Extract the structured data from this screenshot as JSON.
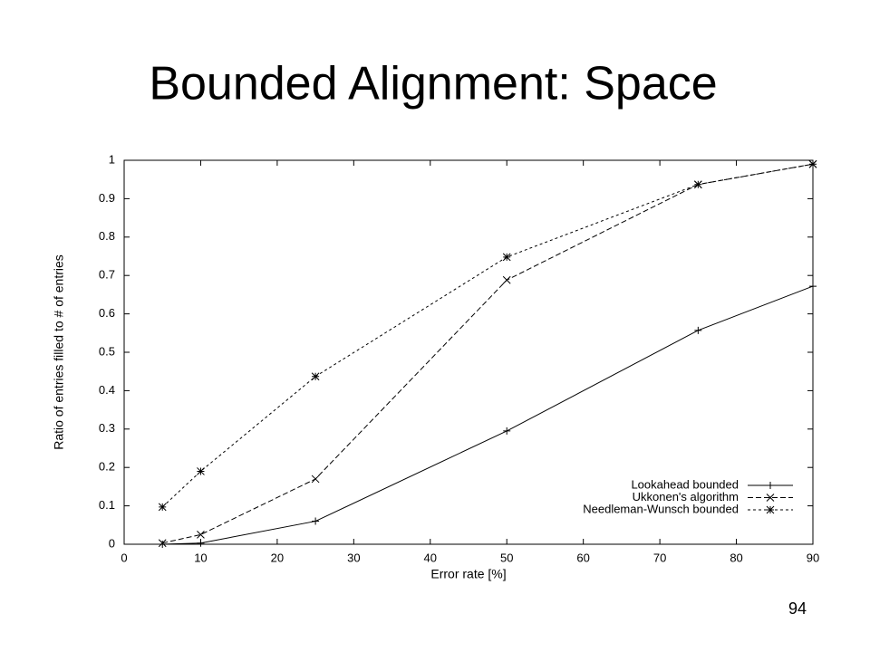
{
  "chart_data": {
    "type": "line",
    "title": "Bounded Alignment: Space",
    "x_label": "Error rate [%]",
    "y_label": "Ratio of entries filled to # of entries",
    "x": [
      5,
      10,
      25,
      50,
      75,
      90
    ],
    "series": [
      {
        "name": "Lookahead bounded",
        "color": "#000000",
        "marker": "plus",
        "dash": "solid",
        "values": [
          0,
          0.003,
          0.06,
          0.295,
          0.557,
          0.672
        ]
      },
      {
        "name": "Ukkonen's algorithm",
        "color": "#000000",
        "marker": "cross",
        "dash": "dashed",
        "values": [
          0.003,
          0.025,
          0.17,
          0.688,
          0.937,
          0.99
        ]
      },
      {
        "name": "Needleman-Wunsch bounded",
        "color": "#000000",
        "marker": "star",
        "dash": "dotted",
        "values": [
          0.097,
          0.19,
          0.437,
          0.748,
          0.937,
          0.99
        ]
      }
    ],
    "xlim": [
      0,
      90
    ],
    "xticks": [
      0,
      10,
      20,
      30,
      40,
      50,
      60,
      70,
      80,
      90
    ],
    "ylim": [
      0,
      1
    ],
    "yticks": [
      0,
      0.1,
      0.2,
      0.3,
      0.4,
      0.5,
      0.6,
      0.7,
      0.8,
      0.9,
      1
    ],
    "legend": "lower right"
  },
  "page_number": "94"
}
